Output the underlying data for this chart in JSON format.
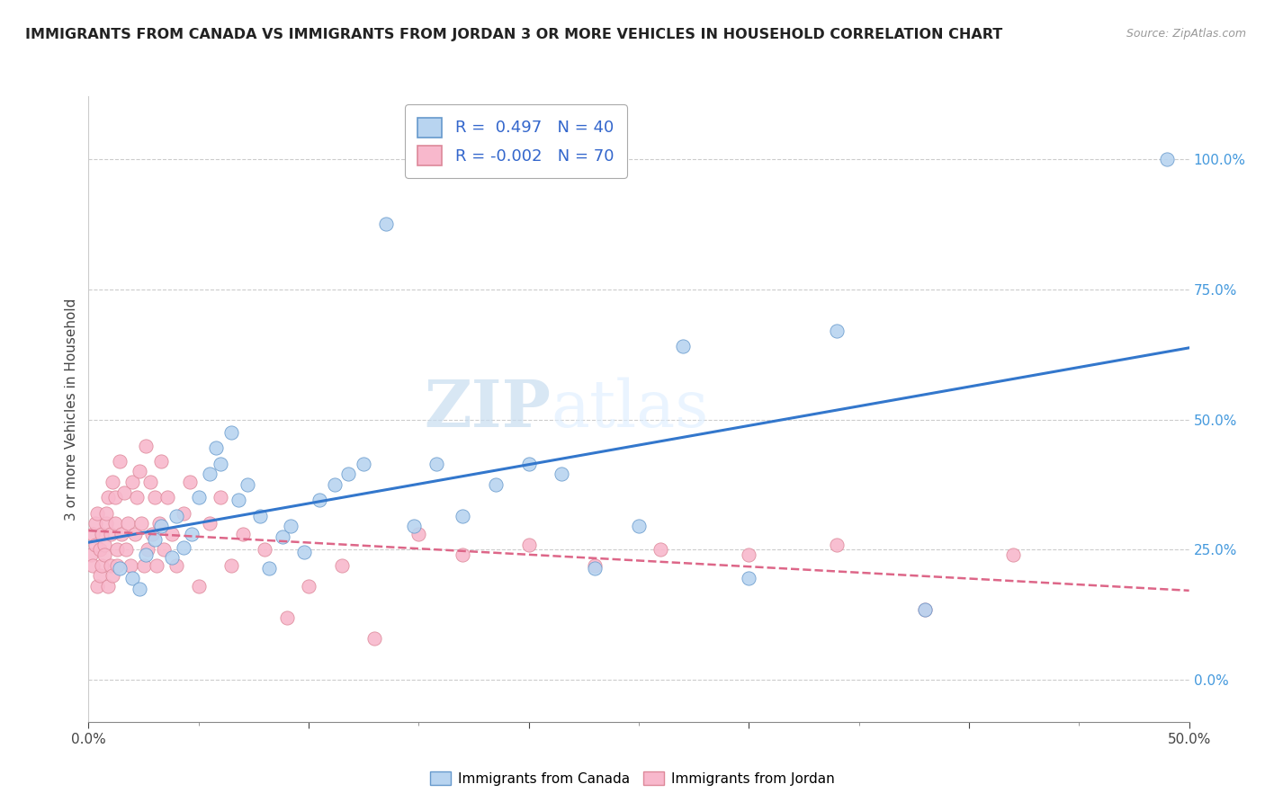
{
  "title": "IMMIGRANTS FROM CANADA VS IMMIGRANTS FROM JORDAN 3 OR MORE VEHICLES IN HOUSEHOLD CORRELATION CHART",
  "source": "Source: ZipAtlas.com",
  "ylabel": "3 or more Vehicles in Household",
  "xlim": [
    0.0,
    0.5
  ],
  "ylim": [
    -0.08,
    1.12
  ],
  "xticks_major": [
    0.0,
    0.1,
    0.2,
    0.3,
    0.4,
    0.5
  ],
  "xticks_minor": [
    0.05,
    0.15,
    0.25,
    0.35,
    0.45
  ],
  "xticklabels": [
    "0.0%",
    "",
    "",
    "",
    "",
    "50.0%"
  ],
  "yticks_right": [
    0.0,
    0.25,
    0.5,
    0.75,
    1.0
  ],
  "yticklabels_right": [
    "0.0%",
    "25.0%",
    "50.0%",
    "75.0%",
    "100.0%"
  ],
  "canada_R": 0.497,
  "canada_N": 40,
  "jordan_R": -0.002,
  "jordan_N": 70,
  "canada_color": "#b8d4f0",
  "jordan_color": "#f8b8cc",
  "canada_edge_color": "#6699cc",
  "jordan_edge_color": "#dd8899",
  "canada_line_color": "#3377cc",
  "jordan_line_color": "#dd6688",
  "legend_label_canada": "Immigrants from Canada",
  "legend_label_jordan": "Immigrants from Jordan",
  "watermark_zip": "ZIP",
  "watermark_atlas": "atlas",
  "background_color": "#ffffff",
  "canada_x": [
    0.014,
    0.02,
    0.023,
    0.026,
    0.03,
    0.033,
    0.038,
    0.04,
    0.043,
    0.047,
    0.05,
    0.055,
    0.058,
    0.06,
    0.065,
    0.068,
    0.072,
    0.078,
    0.082,
    0.088,
    0.092,
    0.098,
    0.105,
    0.112,
    0.118,
    0.125,
    0.135,
    0.148,
    0.158,
    0.17,
    0.185,
    0.2,
    0.215,
    0.23,
    0.25,
    0.27,
    0.3,
    0.34,
    0.38,
    0.49
  ],
  "canada_y": [
    0.215,
    0.195,
    0.175,
    0.24,
    0.27,
    0.295,
    0.235,
    0.315,
    0.255,
    0.28,
    0.35,
    0.395,
    0.445,
    0.415,
    0.475,
    0.345,
    0.375,
    0.315,
    0.215,
    0.275,
    0.295,
    0.245,
    0.345,
    0.375,
    0.395,
    0.415,
    0.875,
    0.295,
    0.415,
    0.315,
    0.375,
    0.415,
    0.395,
    0.215,
    0.295,
    0.64,
    0.195,
    0.67,
    0.135,
    1.0
  ],
  "jordan_x": [
    0.001,
    0.002,
    0.002,
    0.003,
    0.003,
    0.004,
    0.004,
    0.005,
    0.005,
    0.006,
    0.006,
    0.007,
    0.007,
    0.008,
    0.008,
    0.009,
    0.009,
    0.01,
    0.01,
    0.011,
    0.011,
    0.012,
    0.012,
    0.013,
    0.013,
    0.014,
    0.015,
    0.016,
    0.017,
    0.018,
    0.019,
    0.02,
    0.021,
    0.022,
    0.023,
    0.024,
    0.025,
    0.026,
    0.027,
    0.028,
    0.029,
    0.03,
    0.031,
    0.032,
    0.033,
    0.034,
    0.036,
    0.038,
    0.04,
    0.043,
    0.046,
    0.05,
    0.055,
    0.06,
    0.065,
    0.07,
    0.08,
    0.09,
    0.1,
    0.115,
    0.13,
    0.15,
    0.17,
    0.2,
    0.23,
    0.26,
    0.3,
    0.34,
    0.38,
    0.42
  ],
  "jordan_y": [
    0.24,
    0.22,
    0.28,
    0.26,
    0.3,
    0.18,
    0.32,
    0.2,
    0.25,
    0.22,
    0.28,
    0.26,
    0.24,
    0.3,
    0.32,
    0.18,
    0.35,
    0.22,
    0.28,
    0.2,
    0.38,
    0.3,
    0.35,
    0.25,
    0.22,
    0.42,
    0.28,
    0.36,
    0.25,
    0.3,
    0.22,
    0.38,
    0.28,
    0.35,
    0.4,
    0.3,
    0.22,
    0.45,
    0.25,
    0.38,
    0.28,
    0.35,
    0.22,
    0.3,
    0.42,
    0.25,
    0.35,
    0.28,
    0.22,
    0.32,
    0.38,
    0.18,
    0.3,
    0.35,
    0.22,
    0.28,
    0.25,
    0.12,
    0.18,
    0.22,
    0.08,
    0.28,
    0.24,
    0.26,
    0.22,
    0.25,
    0.24,
    0.26,
    0.135,
    0.24
  ]
}
